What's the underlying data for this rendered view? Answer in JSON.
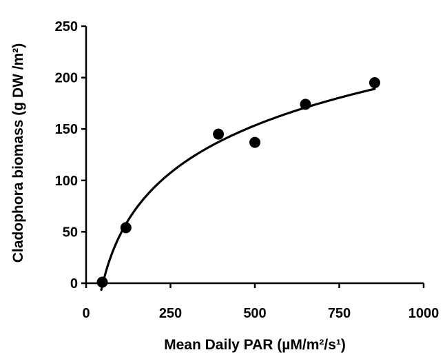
{
  "chart_data": {
    "type": "scatter",
    "xlabel": "Mean Daily PAR (µM/m²/s¹)",
    "ylabel": "Cladophora biomass (g DW /m²)",
    "xlim": [
      0,
      1000
    ],
    "ylim": [
      0,
      250
    ],
    "x_ticks": [
      0,
      250,
      500,
      750,
      1000
    ],
    "y_ticks": [
      0,
      50,
      100,
      150,
      200,
      250
    ],
    "grid": false,
    "series": [
      {
        "values": [
          {
            "x": 48,
            "y": 1
          },
          {
            "x": 118,
            "y": 54
          },
          {
            "x": 392,
            "y": 145
          },
          {
            "x": 500,
            "y": 137
          },
          {
            "x": 650,
            "y": 174
          },
          {
            "x": 855,
            "y": 195
          }
        ]
      }
    ],
    "trend_line": {
      "type": "logarithmic",
      "x_range": [
        45,
        855
      ],
      "color": "#000000"
    },
    "colors": {
      "marks": "#000000",
      "background": "#ffffff"
    }
  }
}
